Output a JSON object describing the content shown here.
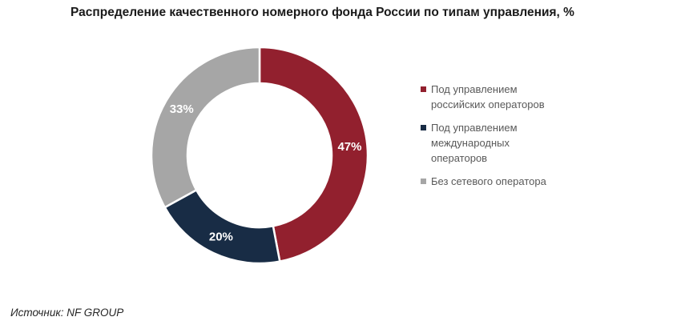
{
  "chart_data": {
    "type": "pie",
    "title": "Распределение качественного номерного фонда России по типам управления, %",
    "slices": [
      {
        "name": "Под управлением\nроссийских операторов",
        "value": 47,
        "label": "47%",
        "color": "#92202E"
      },
      {
        "name": "Под управлением\nмеждународных\nоператоров",
        "value": 20,
        "label": "20%",
        "color": "#182C45"
      },
      {
        "name": "Без сетевого оператора",
        "value": 33,
        "label": "33%",
        "color": "#A6A6A6"
      }
    ],
    "legend_position": "right"
  },
  "source": "Источник: NF GROUP"
}
